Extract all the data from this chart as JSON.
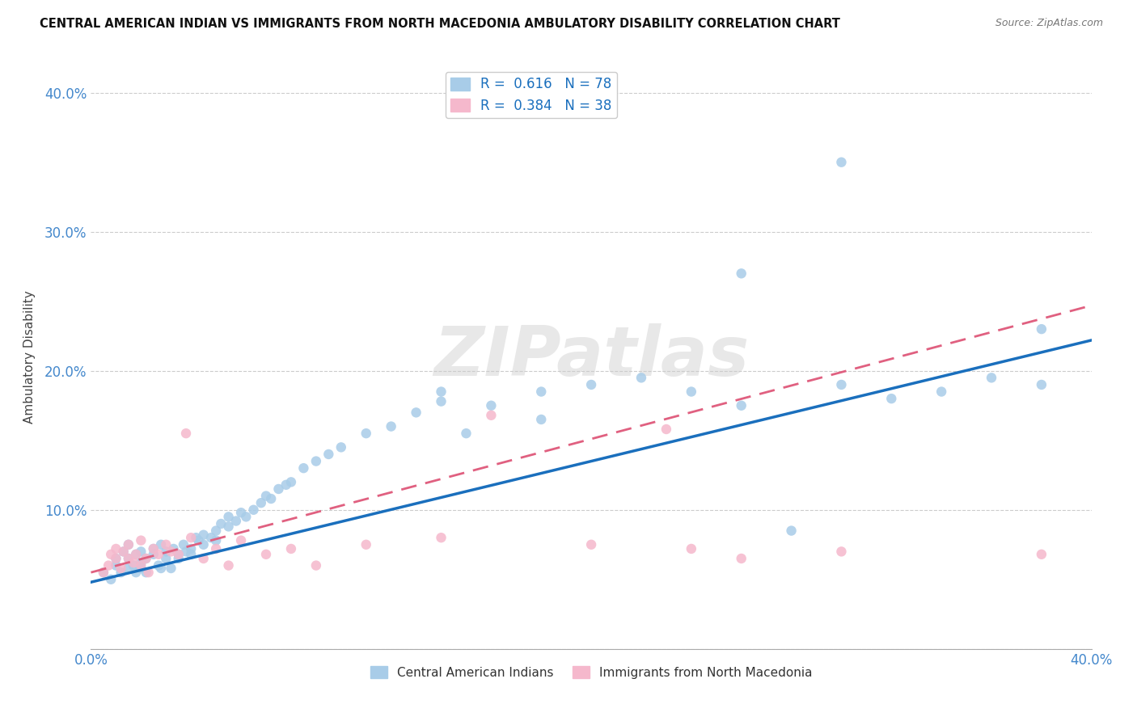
{
  "title": "CENTRAL AMERICAN INDIAN VS IMMIGRANTS FROM NORTH MACEDONIA AMBULATORY DISABILITY CORRELATION CHART",
  "source": "Source: ZipAtlas.com",
  "ylabel": "Ambulatory Disability",
  "xlim": [
    0.0,
    0.4
  ],
  "ylim": [
    0.0,
    0.42
  ],
  "blue_R": 0.616,
  "blue_N": 78,
  "pink_R": 0.384,
  "pink_N": 38,
  "blue_scatter_color": "#a8cce8",
  "pink_scatter_color": "#f5b8cc",
  "blue_line_color": "#1a6fbd",
  "pink_line_color": "#e06080",
  "legend_label_blue": "Central American Indians",
  "legend_label_pink": "Immigrants from North Macedonia",
  "blue_scatter_x": [
    0.005,
    0.008,
    0.01,
    0.01,
    0.012,
    0.013,
    0.015,
    0.015,
    0.015,
    0.017,
    0.018,
    0.018,
    0.02,
    0.02,
    0.02,
    0.022,
    0.022,
    0.025,
    0.025,
    0.027,
    0.028,
    0.028,
    0.03,
    0.03,
    0.032,
    0.033,
    0.035,
    0.035,
    0.037,
    0.038,
    0.04,
    0.04,
    0.042,
    0.043,
    0.045,
    0.045,
    0.048,
    0.05,
    0.05,
    0.052,
    0.055,
    0.055,
    0.058,
    0.06,
    0.062,
    0.065,
    0.068,
    0.07,
    0.072,
    0.075,
    0.078,
    0.08,
    0.085,
    0.09,
    0.095,
    0.1,
    0.11,
    0.12,
    0.13,
    0.14,
    0.15,
    0.16,
    0.18,
    0.2,
    0.22,
    0.24,
    0.26,
    0.28,
    0.3,
    0.32,
    0.34,
    0.36,
    0.38,
    0.14,
    0.18,
    0.26,
    0.3,
    0.38
  ],
  "blue_scatter_y": [
    0.055,
    0.05,
    0.06,
    0.065,
    0.055,
    0.07,
    0.058,
    0.065,
    0.075,
    0.06,
    0.055,
    0.068,
    0.062,
    0.07,
    0.058,
    0.065,
    0.055,
    0.068,
    0.072,
    0.06,
    0.058,
    0.075,
    0.065,
    0.07,
    0.058,
    0.072,
    0.068,
    0.065,
    0.075,
    0.07,
    0.072,
    0.068,
    0.08,
    0.078,
    0.075,
    0.082,
    0.08,
    0.085,
    0.078,
    0.09,
    0.088,
    0.095,
    0.092,
    0.098,
    0.095,
    0.1,
    0.105,
    0.11,
    0.108,
    0.115,
    0.118,
    0.12,
    0.13,
    0.135,
    0.14,
    0.145,
    0.155,
    0.16,
    0.17,
    0.178,
    0.155,
    0.175,
    0.185,
    0.19,
    0.195,
    0.185,
    0.175,
    0.085,
    0.19,
    0.18,
    0.185,
    0.195,
    0.19,
    0.185,
    0.165,
    0.27,
    0.35,
    0.23
  ],
  "pink_scatter_x": [
    0.005,
    0.007,
    0.008,
    0.01,
    0.01,
    0.012,
    0.013,
    0.015,
    0.015,
    0.017,
    0.018,
    0.02,
    0.02,
    0.022,
    0.023,
    0.025,
    0.027,
    0.03,
    0.032,
    0.035,
    0.038,
    0.04,
    0.045,
    0.05,
    0.055,
    0.06,
    0.07,
    0.08,
    0.09,
    0.11,
    0.14,
    0.16,
    0.2,
    0.23,
    0.24,
    0.26,
    0.3,
    0.38
  ],
  "pink_scatter_y": [
    0.055,
    0.06,
    0.068,
    0.065,
    0.072,
    0.058,
    0.07,
    0.065,
    0.075,
    0.062,
    0.068,
    0.06,
    0.078,
    0.065,
    0.055,
    0.072,
    0.068,
    0.075,
    0.07,
    0.068,
    0.155,
    0.08,
    0.065,
    0.072,
    0.06,
    0.078,
    0.068,
    0.072,
    0.06,
    0.075,
    0.08,
    0.168,
    0.075,
    0.158,
    0.072,
    0.065,
    0.07,
    0.068
  ],
  "blue_line_intercept": 0.048,
  "blue_line_slope": 0.435,
  "pink_line_intercept": 0.055,
  "pink_line_slope": 0.48
}
